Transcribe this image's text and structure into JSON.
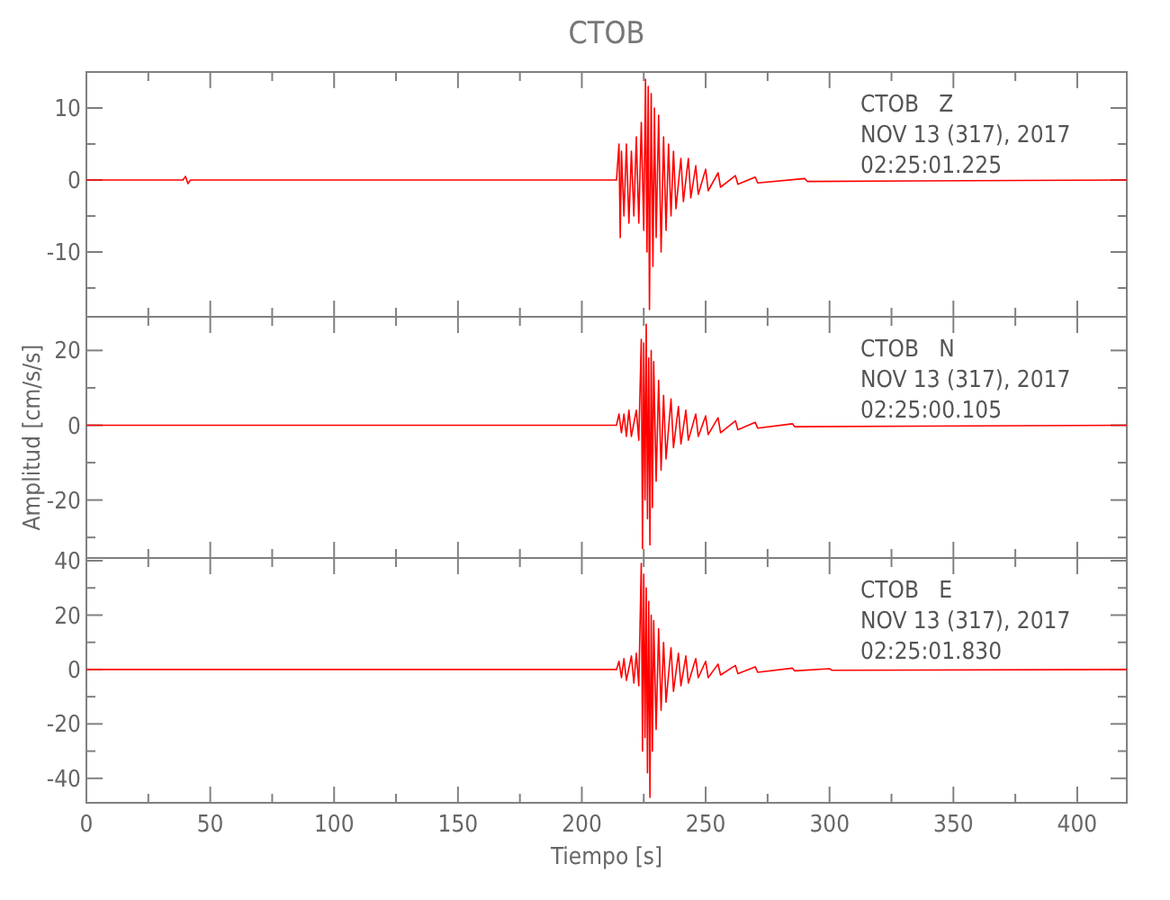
{
  "chart_data": [
    {
      "type": "line",
      "title": "CTOB",
      "annotations": [
        "CTOB   Z",
        "NOV 13 (317), 2017",
        "02:25:01.225"
      ],
      "xlim": [
        0,
        420
      ],
      "xticks": [
        0,
        {
          "value": 25,
          "label": null
        },
        50,
        {
          "value": 75,
          "label": null
        },
        100,
        {
          "value": 125,
          "label": null
        },
        150,
        {
          "value": 175,
          "label": null
        },
        200,
        {
          "value": 225,
          "label": null
        },
        250,
        {
          "value": 275,
          "label": null
        },
        300,
        {
          "value": 325,
          "label": null
        },
        350,
        {
          "value": 375,
          "label": null
        },
        400
      ],
      "ylim": [
        -19,
        15
      ],
      "yticks": [
        {
          "value": -15,
          "label": null
        },
        -10,
        {
          "value": -5,
          "label": null
        },
        0,
        {
          "value": 5,
          "label": null
        },
        10
      ],
      "tick_labels": "y",
      "grid": false,
      "series": [
        {
          "color": "#ff0000",
          "x": [
            0,
            39,
            40,
            41,
            42,
            100,
            214,
            215,
            215.5,
            216,
            217,
            218,
            219,
            220,
            221,
            222,
            223,
            224,
            225,
            225.7,
            226.3,
            226.8,
            227.3,
            228,
            228.7,
            229.3,
            230,
            231,
            232,
            233,
            234,
            235,
            236,
            237,
            238,
            240,
            241,
            243,
            244,
            246,
            247,
            250,
            251,
            255,
            256,
            262,
            263,
            270,
            271,
            290,
            291,
            420
          ],
          "values": [
            0,
            0,
            0.5,
            -0.5,
            0,
            0,
            0,
            5,
            -8,
            4,
            -5,
            5,
            -6,
            4,
            -5,
            6,
            -6,
            8,
            -7,
            14,
            -10,
            13,
            -18,
            12,
            -12,
            10,
            -8,
            9,
            -10,
            6,
            -7,
            5,
            -5,
            4,
            -4,
            3,
            -3,
            3,
            -2.5,
            2,
            -2,
            1.5,
            -1.5,
            1,
            -1,
            0.6,
            -0.6,
            0.4,
            -0.4,
            0.2,
            -0.2,
            0
          ]
        }
      ]
    },
    {
      "type": "line",
      "ylabel": "Amplitud [cm/s/s]",
      "annotations": [
        "CTOB   N",
        "NOV 13 (317), 2017",
        "02:25:00.105"
      ],
      "xlim": [
        0,
        420
      ],
      "xticks": [
        0,
        {
          "value": 25,
          "label": null
        },
        50,
        {
          "value": 75,
          "label": null
        },
        100,
        {
          "value": 125,
          "label": null
        },
        150,
        {
          "value": 175,
          "label": null
        },
        200,
        {
          "value": 225,
          "label": null
        },
        250,
        {
          "value": 275,
          "label": null
        },
        300,
        {
          "value": 325,
          "label": null
        },
        350,
        {
          "value": 375,
          "label": null
        },
        400
      ],
      "ylim": [
        -35.5,
        29
      ],
      "yticks": [
        {
          "value": -30,
          "label": null
        },
        -20,
        {
          "value": -10,
          "label": null
        },
        0,
        {
          "value": 10,
          "label": null
        },
        20
      ],
      "tick_labels": "y",
      "grid": false,
      "series": [
        {
          "color": "#ff0000",
          "x": [
            0,
            214,
            215,
            216,
            217,
            218,
            219,
            220,
            222,
            223,
            224,
            224.5,
            225,
            225.5,
            226,
            226.5,
            227,
            227.5,
            228,
            228.5,
            229,
            230,
            231,
            232,
            233,
            234,
            236,
            237,
            239,
            240,
            242,
            243,
            246,
            247,
            250,
            251,
            255,
            256,
            262,
            263,
            270,
            271,
            285,
            286,
            420
          ],
          "values": [
            0,
            0,
            3,
            -2,
            3,
            -3,
            4,
            -3,
            4,
            -4,
            23,
            -33,
            22,
            -20,
            27,
            -25,
            18,
            -32,
            20,
            -22,
            17,
            -15,
            12,
            -12,
            8,
            -9,
            7,
            -6,
            5,
            -5,
            4,
            -4,
            3,
            -3,
            2.5,
            -2.5,
            2,
            -2,
            1.2,
            -1.2,
            0.8,
            -0.8,
            0.4,
            -0.4,
            0
          ]
        }
      ]
    },
    {
      "type": "line",
      "xlabel": "Tiempo [s]",
      "annotations": [
        "CTOB   E",
        "NOV 13 (317), 2017",
        "02:25:01.830"
      ],
      "xlim": [
        0,
        420
      ],
      "xticks": [
        0,
        {
          "value": 25,
          "label": null
        },
        50,
        {
          "value": 75,
          "label": null
        },
        100,
        {
          "value": 125,
          "label": null
        },
        150,
        {
          "value": 175,
          "label": null
        },
        200,
        {
          "value": 225,
          "label": null
        },
        250,
        {
          "value": 275,
          "label": null
        },
        300,
        {
          "value": 325,
          "label": null
        },
        350,
        {
          "value": 375,
          "label": null
        },
        400
      ],
      "ylim": [
        -49,
        41
      ],
      "yticks": [
        -40,
        {
          "value": -30,
          "label": null
        },
        -20,
        {
          "value": -10,
          "label": null
        },
        0,
        {
          "value": 10,
          "label": null
        },
        20,
        {
          "value": 30,
          "label": null
        },
        40
      ],
      "grid": false,
      "series": [
        {
          "color": "#ff0000",
          "x": [
            0,
            214,
            215,
            216,
            217,
            218,
            220,
            221,
            222,
            223,
            224,
            224.5,
            225,
            225.5,
            226,
            226.5,
            227,
            227.5,
            228,
            228.5,
            229,
            230,
            231,
            232,
            233,
            234,
            236,
            237,
            239,
            240,
            242,
            243,
            246,
            247,
            250,
            251,
            255,
            256,
            262,
            263,
            270,
            271,
            285,
            286,
            300,
            301,
            420
          ],
          "values": [
            0,
            0,
            3,
            -3,
            4,
            -4,
            5,
            -5,
            6,
            -6,
            39,
            -30,
            35,
            -25,
            30,
            -38,
            25,
            -47,
            20,
            -30,
            18,
            -22,
            15,
            -15,
            10,
            -12,
            8,
            -8,
            6,
            -6,
            5,
            -5,
            4,
            -3,
            3,
            -3,
            2,
            -2,
            1.5,
            -1.5,
            1,
            -1,
            0.5,
            -0.5,
            0.3,
            -0.3,
            0
          ]
        }
      ]
    }
  ]
}
